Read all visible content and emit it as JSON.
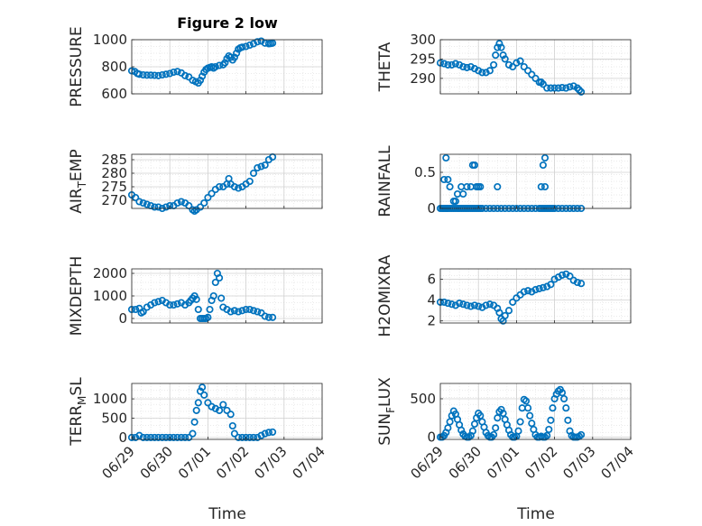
{
  "figure": {
    "title": "Figure 2 low",
    "xlabel": "Time"
  },
  "colors": {
    "marker": "#0072BD",
    "grid": "#d0d0d0",
    "axis": "#262626"
  },
  "chart_data": [
    {
      "type": "scatter",
      "ylabel": "PRESSURE",
      "ylim": [
        600,
        1000
      ],
      "yticks": [
        600,
        800,
        1000
      ],
      "ytick_labels": [
        "600",
        "800",
        "1000"
      ],
      "xlim": [
        0,
        5
      ],
      "xticks": [
        0,
        1,
        2,
        3,
        4,
        5
      ],
      "xtick_labels": [
        "06/29",
        "06/30",
        "07/01",
        "07/02",
        "07/03",
        "07/04"
      ],
      "x": [
        0.0,
        0.08,
        0.15,
        0.2,
        0.3,
        0.4,
        0.5,
        0.6,
        0.7,
        0.8,
        0.9,
        1.0,
        1.1,
        1.2,
        1.3,
        1.4,
        1.5,
        1.6,
        1.68,
        1.75,
        1.8,
        1.85,
        1.9,
        1.95,
        2.0,
        2.05,
        2.1,
        2.15,
        2.2,
        2.3,
        2.4,
        2.45,
        2.5,
        2.55,
        2.6,
        2.65,
        2.7,
        2.75,
        2.8,
        2.85,
        2.9,
        3.0,
        3.1,
        3.2,
        3.3,
        3.4,
        3.5,
        3.6,
        3.65,
        3.7
      ],
      "y": [
        770,
        765,
        750,
        745,
        740,
        738,
        738,
        737,
        735,
        740,
        745,
        750,
        760,
        765,
        755,
        735,
        725,
        700,
        690,
        680,
        700,
        730,
        760,
        780,
        790,
        795,
        800,
        790,
        800,
        810,
        815,
        830,
        860,
        880,
        870,
        850,
        870,
        900,
        930,
        940,
        945,
        950,
        960,
        970,
        985,
        990,
        975,
        970,
        972,
        975
      ]
    },
    {
      "type": "scatter",
      "ylabel": "THETA",
      "ylim": [
        286,
        300
      ],
      "yticks": [
        290,
        295,
        300
      ],
      "ytick_labels": [
        "290",
        "295",
        "300"
      ],
      "xlim": [
        0,
        5
      ],
      "xticks": [
        0,
        1,
        2,
        3,
        4,
        5
      ],
      "xtick_labels": [
        "06/29",
        "06/30",
        "07/01",
        "07/02",
        "07/03",
        "07/04"
      ],
      "x": [
        0.0,
        0.1,
        0.2,
        0.3,
        0.4,
        0.5,
        0.6,
        0.7,
        0.8,
        0.9,
        1.0,
        1.1,
        1.2,
        1.3,
        1.4,
        1.45,
        1.5,
        1.55,
        1.6,
        1.65,
        1.7,
        1.8,
        1.9,
        2.0,
        2.1,
        2.2,
        2.3,
        2.4,
        2.5,
        2.6,
        2.65,
        2.7,
        2.8,
        2.9,
        3.0,
        3.1,
        3.2,
        3.3,
        3.4,
        3.5,
        3.6,
        3.65,
        3.7
      ],
      "y": [
        294,
        293.8,
        293.5,
        293.5,
        293.8,
        293.5,
        293,
        292.8,
        293,
        292.5,
        292,
        291.5,
        291.5,
        292,
        293.5,
        296,
        298,
        299,
        298,
        296,
        295,
        293.5,
        293,
        294,
        294.5,
        293,
        292,
        291,
        290,
        289,
        289,
        288.5,
        287.5,
        287.5,
        287.5,
        287.5,
        287.6,
        287.5,
        287.8,
        288,
        287.5,
        287,
        286.5
      ]
    },
    {
      "type": "scatter",
      "ylabel": "AIR_TEMP",
      "ylabel_main": "AIR",
      "ylabel_sub": "T",
      "ylabel_rest": "EMP",
      "ylim": [
        267,
        287
      ],
      "yticks": [
        270,
        275,
        280,
        285
      ],
      "ytick_labels": [
        "270",
        "275",
        "280",
        "285"
      ],
      "xlim": [
        0,
        5
      ],
      "xticks": [
        0,
        1,
        2,
        3,
        4,
        5
      ],
      "xtick_labels": [
        "06/29",
        "06/30",
        "07/01",
        "07/02",
        "07/03",
        "07/04"
      ],
      "x": [
        0.0,
        0.1,
        0.2,
        0.3,
        0.4,
        0.5,
        0.6,
        0.7,
        0.8,
        0.9,
        1.0,
        1.1,
        1.2,
        1.3,
        1.4,
        1.5,
        1.6,
        1.65,
        1.7,
        1.8,
        1.9,
        2.0,
        2.1,
        2.2,
        2.3,
        2.4,
        2.5,
        2.55,
        2.6,
        2.7,
        2.8,
        2.9,
        3.0,
        3.1,
        3.2,
        3.3,
        3.4,
        3.5,
        3.6,
        3.7
      ],
      "y": [
        272,
        271,
        269.5,
        269,
        268.5,
        268,
        267.5,
        267.5,
        267,
        267.5,
        268,
        268,
        269,
        269.5,
        269,
        268,
        266.5,
        266,
        266.5,
        267.5,
        269,
        271,
        272.5,
        274,
        275,
        275,
        276,
        278,
        276,
        275,
        274.5,
        275,
        276,
        277,
        280,
        282,
        282.5,
        283,
        285,
        286
      ]
    },
    {
      "type": "scatter",
      "ylabel": "RAINFALL",
      "ylim": [
        0,
        0.75
      ],
      "yticks": [
        0,
        0.5
      ],
      "ytick_labels": [
        "0",
        "0.5"
      ],
      "xlim": [
        0,
        5
      ],
      "xticks": [
        0,
        1,
        2,
        3,
        4,
        5
      ],
      "xtick_labels": [
        "06/29",
        "06/30",
        "07/01",
        "07/02",
        "07/03",
        "07/04"
      ],
      "x": [
        0.0,
        0.05,
        0.08,
        0.12,
        0.15,
        0.18,
        0.2,
        0.25,
        0.3,
        0.35,
        0.4,
        0.45,
        0.5,
        0.55,
        0.6,
        0.65,
        0.7,
        0.75,
        0.8,
        0.85,
        0.9,
        0.95,
        1.0,
        1.05,
        1.1,
        1.2,
        1.3,
        1.4,
        1.5,
        1.6,
        1.7,
        1.8,
        1.9,
        2.0,
        2.1,
        2.2,
        2.3,
        2.4,
        2.5,
        2.6,
        2.65,
        2.7,
        2.75,
        2.8,
        2.85,
        2.9,
        2.95,
        3.0,
        3.1,
        3.2,
        3.3,
        3.4,
        3.5,
        3.6,
        3.7,
        0.15,
        0.2,
        0.25,
        0.35,
        0.45,
        0.55,
        0.6,
        0.7,
        0.8,
        0.85,
        0.9,
        0.95,
        1.0,
        1.05,
        1.5,
        2.65,
        2.7,
        2.75,
        2.75,
        0.1,
        0.4
      ],
      "y": [
        0,
        0,
        0,
        0,
        0,
        0,
        0,
        0,
        0,
        0,
        0,
        0,
        0,
        0,
        0,
        0,
        0,
        0,
        0,
        0,
        0,
        0,
        0,
        0,
        0,
        0,
        0,
        0,
        0,
        0,
        0,
        0,
        0,
        0,
        0,
        0,
        0,
        0,
        0,
        0,
        0,
        0,
        0,
        0,
        0,
        0,
        0,
        0,
        0,
        0,
        0,
        0,
        0,
        0,
        0,
        0.7,
        0.4,
        0.3,
        0.1,
        0.2,
        0.3,
        0.2,
        0.3,
        0.3,
        0.6,
        0.6,
        0.3,
        0.3,
        0.3,
        0.3,
        0.3,
        0.6,
        0.7,
        0.3,
        0.4,
        0.1
      ]
    },
    {
      "type": "scatter",
      "ylabel": "MIXDEPTH",
      "ylim": [
        -200,
        2200
      ],
      "yticks": [
        0,
        1000,
        2000
      ],
      "ytick_labels": [
        "0",
        "1000",
        "2000"
      ],
      "xlim": [
        0,
        5
      ],
      "xticks": [
        0,
        1,
        2,
        3,
        4,
        5
      ],
      "xtick_labels": [
        "06/29",
        "06/30",
        "07/01",
        "07/02",
        "07/03",
        "07/04"
      ],
      "x": [
        0.0,
        0.1,
        0.2,
        0.25,
        0.3,
        0.4,
        0.5,
        0.6,
        0.7,
        0.8,
        0.9,
        1.0,
        1.1,
        1.2,
        1.3,
        1.4,
        1.5,
        1.55,
        1.6,
        1.65,
        1.7,
        1.75,
        1.8,
        1.85,
        1.9,
        1.95,
        2.0,
        2.05,
        2.1,
        2.15,
        2.2,
        2.25,
        2.3,
        2.35,
        2.4,
        2.5,
        2.6,
        2.7,
        2.8,
        2.9,
        3.0,
        3.1,
        3.2,
        3.3,
        3.4,
        3.5,
        3.6,
        3.7
      ],
      "y": [
        400,
        400,
        450,
        250,
        300,
        500,
        600,
        700,
        750,
        800,
        700,
        600,
        600,
        650,
        700,
        600,
        700,
        800,
        900,
        1000,
        850,
        400,
        0,
        0,
        0,
        0,
        50,
        400,
        800,
        1000,
        1600,
        2000,
        1800,
        900,
        500,
        400,
        300,
        350,
        300,
        350,
        400,
        400,
        350,
        300,
        250,
        100,
        50,
        50
      ]
    },
    {
      "type": "scatter",
      "ylabel": "H2OMIXRA",
      "ylim": [
        1.8,
        7
      ],
      "yticks": [
        2,
        4,
        6
      ],
      "ytick_labels": [
        "2",
        "4",
        "6"
      ],
      "xlim": [
        0,
        5
      ],
      "xticks": [
        0,
        1,
        2,
        3,
        4,
        5
      ],
      "xtick_labels": [
        "06/29",
        "06/30",
        "07/01",
        "07/02",
        "07/03",
        "07/04"
      ],
      "x": [
        0.0,
        0.1,
        0.2,
        0.3,
        0.4,
        0.5,
        0.6,
        0.7,
        0.8,
        0.9,
        1.0,
        1.1,
        1.2,
        1.3,
        1.4,
        1.5,
        1.55,
        1.6,
        1.65,
        1.7,
        1.8,
        1.9,
        2.0,
        2.1,
        2.2,
        2.3,
        2.4,
        2.5,
        2.6,
        2.7,
        2.8,
        2.9,
        3.0,
        3.1,
        3.2,
        3.3,
        3.4,
        3.5,
        3.6,
        3.7
      ],
      "y": [
        3.8,
        3.8,
        3.7,
        3.6,
        3.5,
        3.7,
        3.6,
        3.5,
        3.4,
        3.5,
        3.4,
        3.3,
        3.5,
        3.6,
        3.5,
        3.2,
        2.8,
        2.2,
        2.0,
        2.5,
        3.0,
        3.8,
        4.2,
        4.5,
        4.8,
        4.9,
        4.8,
        5.0,
        5.1,
        5.2,
        5.3,
        5.5,
        6.0,
        6.2,
        6.4,
        6.5,
        6.3,
        5.9,
        5.7,
        5.6
      ]
    },
    {
      "type": "scatter",
      "ylabel": "TERR_MSL",
      "ylabel_main": "TERR",
      "ylabel_sub": "M",
      "ylabel_rest": "SL",
      "ylim": [
        -50,
        1400
      ],
      "yticks": [
        0,
        500,
        1000
      ],
      "ytick_labels": [
        "0",
        "500",
        "1000"
      ],
      "xlim": [
        0,
        5
      ],
      "xticks": [
        0,
        1,
        2,
        3,
        4,
        5
      ],
      "xtick_labels": [
        "06/29",
        "06/30",
        "07/01",
        "07/02",
        "07/03",
        "07/04"
      ],
      "x": [
        0.0,
        0.1,
        0.2,
        0.3,
        0.4,
        0.5,
        0.6,
        0.7,
        0.8,
        0.9,
        1.0,
        1.1,
        1.2,
        1.3,
        1.4,
        1.5,
        1.6,
        1.65,
        1.7,
        1.75,
        1.8,
        1.85,
        1.9,
        2.0,
        2.1,
        2.2,
        2.3,
        2.4,
        2.5,
        2.6,
        2.65,
        2.7,
        2.8,
        2.9,
        3.0,
        3.1,
        3.2,
        3.3,
        3.4,
        3.5,
        3.6,
        3.7
      ],
      "y": [
        0,
        0,
        50,
        0,
        0,
        0,
        0,
        0,
        0,
        0,
        0,
        0,
        0,
        0,
        0,
        0,
        100,
        400,
        700,
        900,
        1200,
        1300,
        1100,
        900,
        800,
        750,
        700,
        850,
        700,
        600,
        300,
        100,
        0,
        0,
        0,
        0,
        0,
        0,
        50,
        100,
        130,
        140
      ]
    },
    {
      "type": "scatter",
      "ylabel": "SUN_FLUX",
      "ylabel_main": "SUN",
      "ylabel_sub": "F",
      "ylabel_rest": "LUX",
      "ylim": [
        -30,
        700
      ],
      "yticks": [
        0,
        500
      ],
      "ytick_labels": [
        "0",
        "500"
      ],
      "xlim": [
        0,
        5
      ],
      "xticks": [
        0,
        1,
        2,
        3,
        4,
        5
      ],
      "xtick_labels": [
        "06/29",
        "06/30",
        "07/01",
        "07/02",
        "07/03",
        "07/04"
      ],
      "x": [
        0.0,
        0.05,
        0.1,
        0.15,
        0.2,
        0.25,
        0.3,
        0.35,
        0.4,
        0.45,
        0.5,
        0.55,
        0.6,
        0.65,
        0.7,
        0.75,
        0.8,
        0.85,
        0.9,
        0.95,
        1.0,
        1.05,
        1.1,
        1.15,
        1.2,
        1.25,
        1.3,
        1.35,
        1.4,
        1.45,
        1.5,
        1.55,
        1.6,
        1.65,
        1.7,
        1.75,
        1.8,
        1.85,
        1.9,
        1.95,
        2.0,
        2.05,
        2.1,
        2.15,
        2.2,
        2.25,
        2.3,
        2.35,
        2.4,
        2.45,
        2.5,
        2.55,
        2.6,
        2.65,
        2.7,
        2.75,
        2.8,
        2.85,
        2.9,
        2.95,
        3.0,
        3.05,
        3.1,
        3.15,
        3.2,
        3.25,
        3.3,
        3.35,
        3.4,
        3.45,
        3.5,
        3.55,
        3.6,
        3.65,
        3.7
      ],
      "y": [
        0,
        0,
        20,
        60,
        120,
        200,
        280,
        340,
        300,
        230,
        160,
        90,
        40,
        10,
        0,
        0,
        20,
        80,
        170,
        250,
        310,
        280,
        200,
        130,
        60,
        20,
        0,
        0,
        30,
        120,
        250,
        330,
        360,
        310,
        230,
        160,
        90,
        30,
        0,
        0,
        10,
        80,
        200,
        380,
        490,
        470,
        380,
        280,
        180,
        100,
        30,
        0,
        0,
        10,
        0,
        0,
        20,
        100,
        220,
        380,
        500,
        560,
        600,
        620,
        580,
        500,
        380,
        220,
        80,
        20,
        0,
        0,
        0,
        10,
        30
      ]
    }
  ]
}
